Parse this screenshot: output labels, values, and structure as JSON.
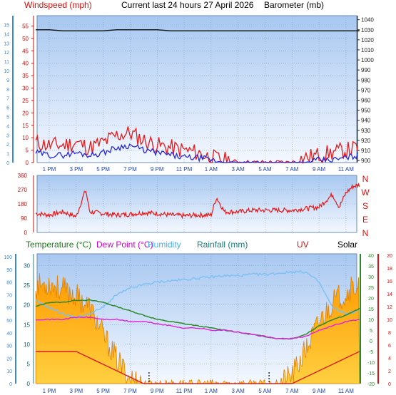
{
  "header": {
    "windspeed_label": "Windspeed (mph)",
    "title": "Current last 24 hours 27 April 2026",
    "barometer_label": "Barometer (mb)"
  },
  "colors": {
    "plot_bg_top": "#a8c8f0",
    "plot_bg_bottom": "#f4f8ff",
    "grid": "#7e9ccc",
    "red": "#e81818",
    "blue": "#2828d8",
    "black": "#1a1a1a",
    "green": "#2a8a2a",
    "magenta": "#e020e0",
    "light_blue": "#7cc0f4",
    "orange": "#ffa000",
    "dark_red": "#d82020",
    "teal": "#208080",
    "left_axis_blue": "#3a8ad8",
    "right_axis_green": "#2a8a2a"
  },
  "x_ticks": [
    "1 PM",
    "3 PM",
    "5 PM",
    "7 PM",
    "9 PM",
    "11 PM",
    "1 AM",
    "3 AM",
    "5 AM",
    "7 AM",
    "9 AM",
    "11 AM"
  ],
  "chart_data": [
    {
      "type": "line",
      "title": "Current last 24 hours 27 April 2026",
      "ylabel": "Windspeed (mph)",
      "y2label": "Barometer (mb)",
      "left_axis_kts": [
        0,
        1,
        2,
        3,
        4,
        5,
        6,
        7,
        8,
        9,
        10,
        11,
        12,
        13,
        14,
        15
      ],
      "y_ticks": [
        0,
        5,
        10,
        15,
        20,
        25,
        30,
        35,
        40,
        45,
        50,
        55
      ],
      "y2_ticks": [
        900,
        910,
        920,
        930,
        940,
        950,
        960,
        970,
        980,
        990,
        1000,
        1010,
        1020,
        1030,
        1040
      ],
      "ylim": [
        0,
        58
      ],
      "y2lim": [
        898,
        1044
      ],
      "hours": [
        12,
        13,
        14,
        15,
        16,
        17,
        18,
        19,
        20,
        21,
        22,
        23,
        24,
        25,
        26,
        27,
        28,
        29,
        30,
        31,
        32,
        33,
        34,
        35,
        36
      ],
      "series": [
        {
          "values": [
            8,
            7,
            7,
            8,
            6,
            8,
            11,
            12,
            9,
            7,
            6,
            5,
            4,
            2,
            1,
            0,
            0,
            0,
            0,
            0,
            2,
            3,
            4,
            5,
            6
          ]
        },
        {
          "values": [
            4,
            3,
            3,
            4,
            3,
            4,
            6,
            7,
            5,
            4,
            3,
            2,
            2,
            1,
            0,
            0,
            0,
            0,
            0,
            0,
            0,
            1,
            1,
            2,
            3
          ]
        },
        {
          "values": [
            1030,
            1030,
            1029,
            1029,
            1029,
            1029,
            1030,
            1030,
            1030,
            1030,
            1029,
            1029,
            1029,
            1029,
            1029,
            1029,
            1029,
            1029,
            1029,
            1029,
            1029,
            1029,
            1029,
            1029,
            1029
          ]
        }
      ]
    },
    {
      "type": "line",
      "y_ticks": [
        0,
        90,
        180,
        270,
        360
      ],
      "compass_labels": [
        "N",
        "W",
        "S",
        "E",
        "N"
      ],
      "ylim": [
        0,
        360
      ],
      "hours": [
        12,
        13,
        14,
        15,
        15.7,
        16,
        17,
        18,
        19,
        20,
        21,
        22,
        23,
        24,
        25,
        25.4,
        26,
        27,
        28,
        29,
        30,
        31,
        32,
        33,
        34,
        34.5,
        35,
        35.5,
        36
      ],
      "values": [
        120,
        110,
        130,
        100,
        270,
        130,
        120,
        110,
        115,
        125,
        120,
        110,
        105,
        110,
        110,
        220,
        130,
        130,
        140,
        140,
        140,
        140,
        150,
        160,
        240,
        160,
        250,
        290,
        300
      ]
    },
    {
      "type": "area",
      "labels": {
        "temperature": "Temperature (°C)",
        "dew_point": "Dew Point (°C)",
        "humidity": "Humidity",
        "rainfall": "Rainfall (mm)",
        "uv": "UV",
        "solar": "Solar"
      },
      "humidity_ticks": [
        0,
        10,
        20,
        30,
        40,
        50,
        60,
        70,
        80,
        90,
        100
      ],
      "rain_ticks": [
        0,
        5,
        10,
        15,
        20,
        25,
        30
      ],
      "temp_ticks": [
        -20,
        -15,
        -10,
        -5,
        0,
        5,
        10,
        15,
        20,
        25,
        30,
        35,
        40
      ],
      "uv_ticks": [
        0,
        2,
        4,
        6,
        8,
        10,
        12,
        14,
        16,
        18,
        20
      ],
      "hours": [
        12,
        13,
        14,
        15,
        16,
        17,
        18,
        19,
        20,
        21,
        22,
        23,
        24,
        25,
        26,
        27,
        28,
        29,
        30,
        31,
        32,
        33,
        34,
        35,
        36
      ],
      "series": [
        {
          "values": [
            16,
            18,
            18,
            19,
            19,
            18,
            16,
            14,
            12,
            10,
            9,
            8,
            7,
            6,
            5,
            4,
            3,
            2,
            1,
            1,
            3,
            7,
            10,
            12,
            15
          ]
        },
        {
          "values": [
            10,
            10,
            10,
            11,
            11,
            10,
            10,
            9,
            9,
            8,
            7,
            6,
            6,
            5,
            5,
            4,
            3,
            2,
            1,
            1,
            2,
            5,
            7,
            9,
            10
          ]
        },
        {
          "values": [
            65,
            60,
            55,
            52,
            55,
            60,
            70,
            75,
            78,
            80,
            81,
            82,
            83,
            84,
            85,
            85,
            86,
            86,
            87,
            88,
            88,
            80,
            60,
            55,
            57
          ]
        },
        {
          "values": [
            5,
            5,
            5,
            5,
            4,
            3,
            2,
            1,
            0,
            0,
            0,
            0,
            0,
            0,
            0,
            0,
            0,
            0,
            0,
            0,
            1,
            2,
            3,
            4,
            5
          ]
        },
        {
          "values": [
            600,
            620,
            580,
            540,
            470,
            300,
            150,
            30,
            0,
            0,
            0,
            0,
            0,
            0,
            0,
            0,
            0,
            0,
            0,
            50,
            200,
            380,
            500,
            560,
            620
          ]
        }
      ]
    }
  ]
}
